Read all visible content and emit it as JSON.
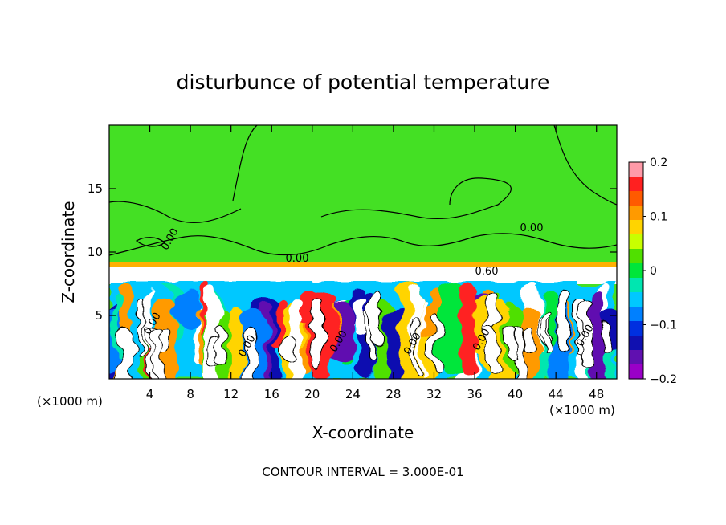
{
  "chart_data": {
    "type": "heatmap",
    "title": "disturbunce of potential temperature",
    "xlabel": "X-coordinate",
    "ylabel": "Z-coordinate",
    "x_unit": "(×1000 m)",
    "xlim": [
      0,
      50
    ],
    "ylim": [
      0,
      20
    ],
    "x_ticks": [
      4,
      8,
      12,
      16,
      20,
      24,
      28,
      32,
      36,
      40,
      44,
      48
    ],
    "y_ticks": [
      5,
      10,
      15
    ],
    "colorbar": {
      "range": [
        -0.2,
        0.2
      ],
      "tick_labels": [
        "0.2",
        "0.1",
        "0",
        "−0.1",
        "−0.2"
      ],
      "tick_values": [
        0.2,
        0.1,
        0,
        -0.1,
        -0.2
      ],
      "colors": [
        "#ff9aa8",
        "#ff2020",
        "#ff5a00",
        "#ff9a00",
        "#ffd400",
        "#c8ff00",
        "#50e000",
        "#00e63a",
        "#00e6b0",
        "#00c8ff",
        "#0080ff",
        "#0030e0",
        "#1010b0",
        "#6010b0",
        "#9a00c8"
      ]
    },
    "contour_labels": [
      "0.00",
      "0.00",
      "0.60",
      "0.00",
      "0.00",
      "0.00",
      "0.00",
      "0.00",
      "0.00",
      "0.00"
    ],
    "footer": "CONTOUR INTERVAL = 3.000E-01"
  }
}
